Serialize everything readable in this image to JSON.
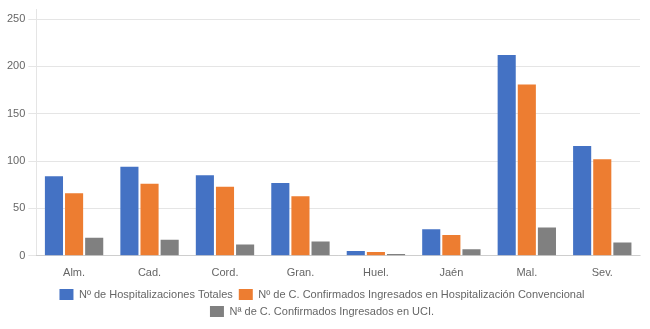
{
  "chart_data": {
    "type": "bar",
    "categories": [
      "Alm.",
      "Cad.",
      "Cord.",
      "Gran.",
      "Huel.",
      "Jaén",
      "Mal.",
      "Sev."
    ],
    "series": [
      {
        "name": "Nº de Hospitalizaciones Totales",
        "color": "#4472C4",
        "values": [
          84,
          94,
          85,
          77,
          5,
          28,
          212,
          116
        ]
      },
      {
        "name": "Nº de C. Confirmados Ingresados en Hospitalización Convencional",
        "color": "#ED7D31",
        "values": [
          66,
          76,
          73,
          63,
          4,
          22,
          181,
          102
        ]
      },
      {
        "name": "Nª de C. Confirmados Ingresados en UCI.",
        "color": "#808080",
        "values": [
          19,
          17,
          12,
          15,
          2,
          7,
          30,
          14
        ]
      }
    ],
    "ylim": [
      0,
      260
    ],
    "yticks": [
      0,
      50,
      100,
      150,
      200,
      250
    ],
    "grid": true,
    "legend": "bottom"
  }
}
